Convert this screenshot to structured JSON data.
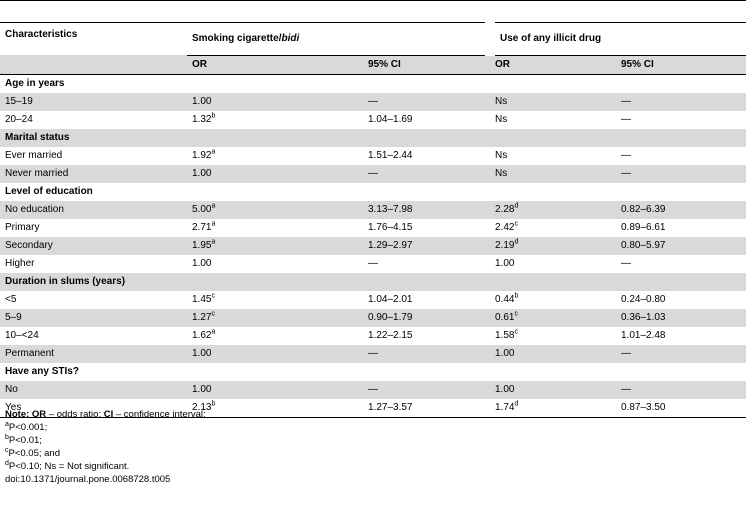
{
  "header": {
    "characteristics": "Characteristics",
    "group1_prefix": "Smoking cigarette/",
    "group1_italic": "bidi",
    "group2": "Use of any illicit drug",
    "or1": "OR",
    "ci1": "95% CI",
    "or2": "OR",
    "ci2": "95% CI"
  },
  "sections": [
    {
      "title": "Age in years",
      "rows": [
        {
          "label": "15–19",
          "or1": "1.00",
          "or1_sup": "",
          "ci1": "—",
          "or2": "Ns",
          "or2_sup": "",
          "ci2": "—"
        },
        {
          "label": "20–24",
          "or1": "1.32",
          "or1_sup": "b",
          "ci1": "1.04–1.69",
          "or2": "Ns",
          "or2_sup": "",
          "ci2": "—"
        }
      ]
    },
    {
      "title": "Marital status",
      "rows": [
        {
          "label": "Ever married",
          "or1": "1.92",
          "or1_sup": "a",
          "ci1": "1.51–2.44",
          "or2": "Ns",
          "or2_sup": "",
          "ci2": "—"
        },
        {
          "label": "Never married",
          "or1": "1.00",
          "or1_sup": "",
          "ci1": "—",
          "or2": "Ns",
          "or2_sup": "",
          "ci2": "—"
        }
      ]
    },
    {
      "title": "Level of education",
      "rows": [
        {
          "label": "No education",
          "or1": "5.00",
          "or1_sup": "a",
          "ci1": "3.13–7.98",
          "or2": "2.28",
          "or2_sup": "d",
          "ci2": "0.82–6.39"
        },
        {
          "label": "Primary",
          "or1": "2.71",
          "or1_sup": "a",
          "ci1": "1.76–4.15",
          "or2": "2.42",
          "or2_sup": "c",
          "ci2": "0.89–6.61"
        },
        {
          "label": "Secondary",
          "or1": "1.95",
          "or1_sup": "a",
          "ci1": "1.29–2.97",
          "or2": "2.19",
          "or2_sup": "d",
          "ci2": "0.80–5.97"
        },
        {
          "label": "Higher",
          "or1": "1.00",
          "or1_sup": "",
          "ci1": "—",
          "or2": "1.00",
          "or2_sup": "",
          "ci2": "—"
        }
      ]
    },
    {
      "title": "Duration in slums (years)",
      "rows": [
        {
          "label": "<5",
          "or1": "1.45",
          "or1_sup": "c",
          "ci1": "1.04–2.01",
          "or2": "0.44",
          "or2_sup": "b",
          "ci2": "0.24–0.80"
        },
        {
          "label": "5–9",
          "or1": "1.27",
          "or1_sup": "c",
          "ci1": "0.90–1.79",
          "or2": "0.61",
          "or2_sup": "c",
          "ci2": "0.36–1.03"
        },
        {
          "label": "10–<24",
          "or1": "1.62",
          "or1_sup": "a",
          "ci1": "1.22–2.15",
          "or2": "1.58",
          "or2_sup": "c",
          "ci2": "1.01–2.48"
        },
        {
          "label": "Permanent",
          "or1": "1.00",
          "or1_sup": "",
          "ci1": "—",
          "or2": "1.00",
          "or2_sup": "",
          "ci2": "—"
        }
      ]
    },
    {
      "title": "Have any STIs?",
      "rows": [
        {
          "label": "No",
          "or1": "1.00",
          "or1_sup": "",
          "ci1": "—",
          "or2": "1.00",
          "or2_sup": "",
          "ci2": "—"
        },
        {
          "label": "Yes",
          "or1": "2.13",
          "or1_sup": "b",
          "ci1": "1.27–3.57",
          "or2": "1.74",
          "or2_sup": "d",
          "ci2": "0.87–3.50"
        }
      ]
    }
  ],
  "notes": {
    "label": "Note:",
    "or_abbr": "OR",
    "or_def": " – odds ratio; ",
    "ci_abbr": "CI",
    "ci_def": " – confidence interval;",
    "footnotes": [
      {
        "mark": "a",
        "text": "P<0.001;"
      },
      {
        "mark": "b",
        "text": "P<0.01;"
      },
      {
        "mark": "c",
        "text": "P<0.05; and"
      },
      {
        "mark": "d",
        "text": "P<0.10; Ns = Not significant."
      }
    ],
    "doi": "doi:10.1371/journal.pone.0068728.t005"
  }
}
